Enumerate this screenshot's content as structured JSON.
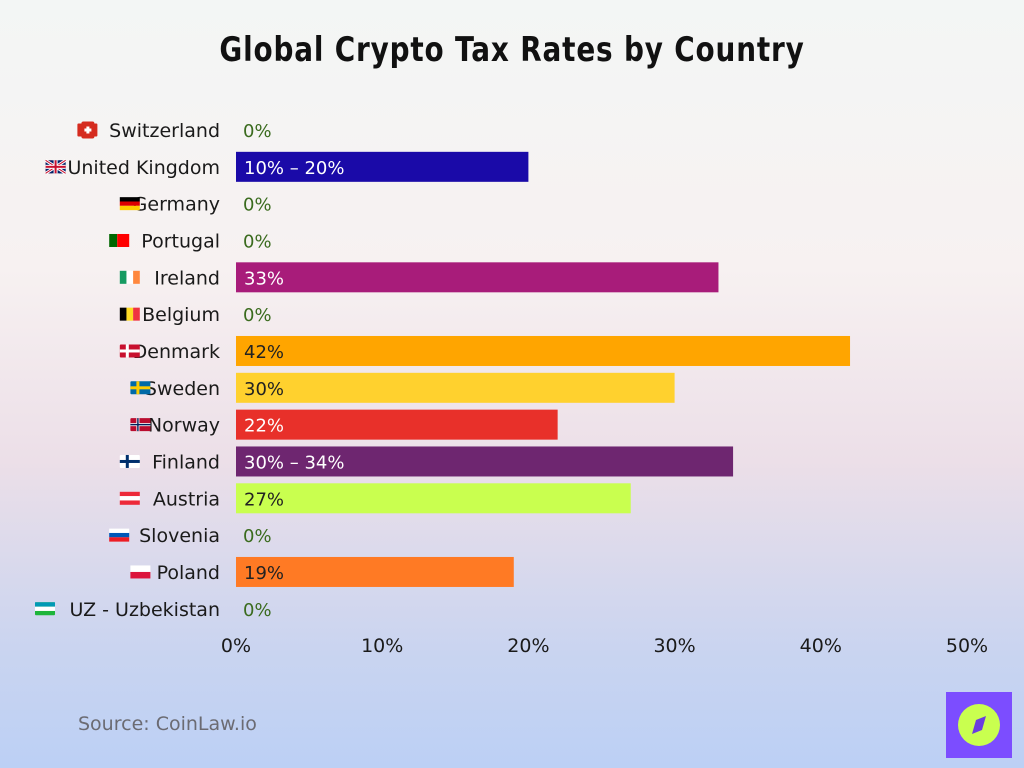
{
  "chart_data": {
    "type": "bar",
    "orientation": "horizontal",
    "title": "Global Crypto Tax Rates by Country",
    "categories": [
      "Switzerland",
      "United Kingdom",
      "Germany",
      "Portugal",
      "Ireland",
      "Belgium",
      "Denmark",
      "Sweden",
      "Norway",
      "Finland",
      "Austria",
      "Slovenia",
      "Poland",
      "UZ - Uzbekistan"
    ],
    "flags": [
      "switzerland-flag",
      "united-kingdom-flag",
      "germany-flag",
      "portugal-flag",
      "ireland-flag",
      "belgium-flag",
      "denmark-flag",
      "sweden-flag",
      "norway-flag",
      "finland-flag",
      "austria-flag",
      "slovenia-flag",
      "poland-flag",
      "uzbekistan-flag"
    ],
    "values": [
      0,
      20,
      0,
      0,
      33,
      0,
      42,
      30,
      22,
      34,
      27,
      0,
      19,
      0
    ],
    "data_labels": [
      "0%",
      "10% – 20%",
      "0%",
      "0%",
      "33%",
      "0%",
      "42%",
      "30%",
      "22%",
      "30% – 34%",
      "27%",
      "0%",
      "19%",
      "0%"
    ],
    "colors": [
      "#3a6b1e",
      "#1a0aa8",
      "#3a6b1e",
      "#3a6b1e",
      "#a81c7a",
      "#3a6b1e",
      "#ffa500",
      "#ffd12e",
      "#e8302a",
      "#6e2670",
      "#c9ff4f",
      "#3a6b1e",
      "#ff7a24",
      "#3a6b1e"
    ],
    "label_colors": [
      "#3a6b1e",
      "#ffffff",
      "#3a6b1e",
      "#3a6b1e",
      "#ffffff",
      "#3a6b1e",
      "#222222",
      "#222222",
      "#ffffff",
      "#ffffff",
      "#222222",
      "#3a6b1e",
      "#222222",
      "#3a6b1e"
    ],
    "xlim": [
      0,
      50
    ],
    "xticks": [
      "0%",
      "10%",
      "20%",
      "30%",
      "40%",
      "50%"
    ],
    "grid": false,
    "legend": "none"
  },
  "source": "Source: CoinLaw.io",
  "logo": "compass-logo"
}
